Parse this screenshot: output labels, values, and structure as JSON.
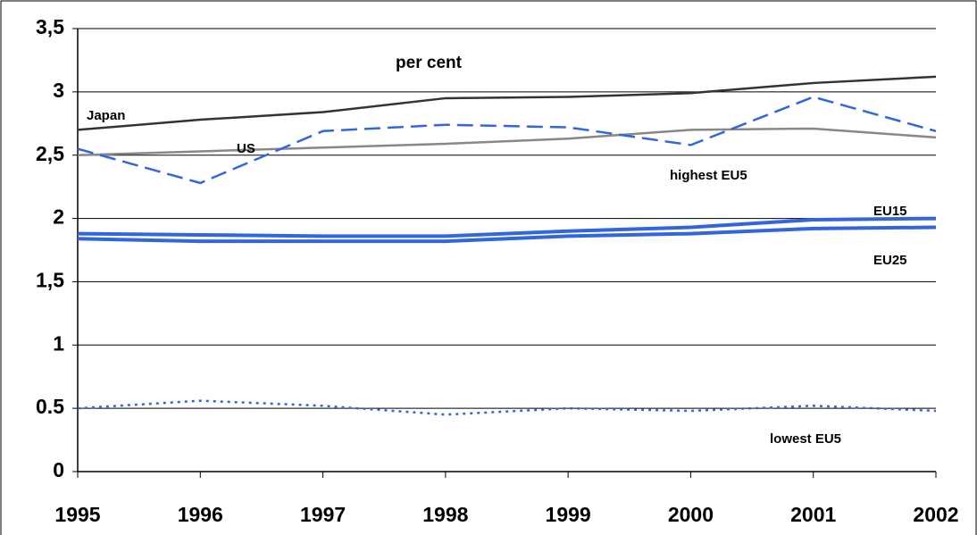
{
  "chart_data": {
    "type": "line",
    "title": "per cent",
    "x": [
      1995,
      1996,
      1997,
      1998,
      1999,
      2000,
      2001,
      2002
    ],
    "xlim": [
      1995,
      2002
    ],
    "xticks": [
      1995,
      1996,
      1997,
      1998,
      1999,
      2000,
      2001,
      2002
    ],
    "ylim": [
      0,
      3.5
    ],
    "yticks": [
      0,
      0.5,
      1,
      {
        "value": 1.5,
        "label": "1,5"
      },
      2,
      {
        "value": 2.5,
        "label": "2,5"
      },
      3,
      {
        "value": 3.5,
        "label": "3,5"
      }
    ],
    "grid": true,
    "series": [
      {
        "name": "Japan",
        "color": "#333333",
        "style": "solid",
        "values": [
          2.7,
          2.78,
          2.84,
          2.95,
          2.96,
          2.99,
          3.07,
          3.12
        ]
      },
      {
        "name": "US",
        "color": "#888888",
        "style": "solid",
        "values": [
          2.5,
          2.53,
          2.56,
          2.59,
          2.63,
          2.7,
          2.71,
          2.64
        ]
      },
      {
        "name": "highest EU5",
        "color": "#3366dd",
        "style": "dashed",
        "values": [
          2.55,
          2.28,
          2.69,
          2.74,
          2.72,
          2.58,
          2.96,
          2.69
        ]
      },
      {
        "name": "EU15",
        "color": "#3366dd",
        "style": "thick",
        "values": [
          1.88,
          1.87,
          1.86,
          1.86,
          1.9,
          1.93,
          1.99,
          2.0
        ]
      },
      {
        "name": "EU25",
        "color": "#3366dd",
        "style": "thick",
        "values": [
          1.84,
          1.82,
          1.82,
          1.82,
          1.86,
          1.88,
          1.92,
          1.93
        ]
      },
      {
        "name": "lowest EU5",
        "color": "#3366dd",
        "style": "dotted",
        "values": [
          0.5,
          0.56,
          0.52,
          0.45,
          0.5,
          0.48,
          0.52,
          0.48
        ]
      }
    ]
  }
}
